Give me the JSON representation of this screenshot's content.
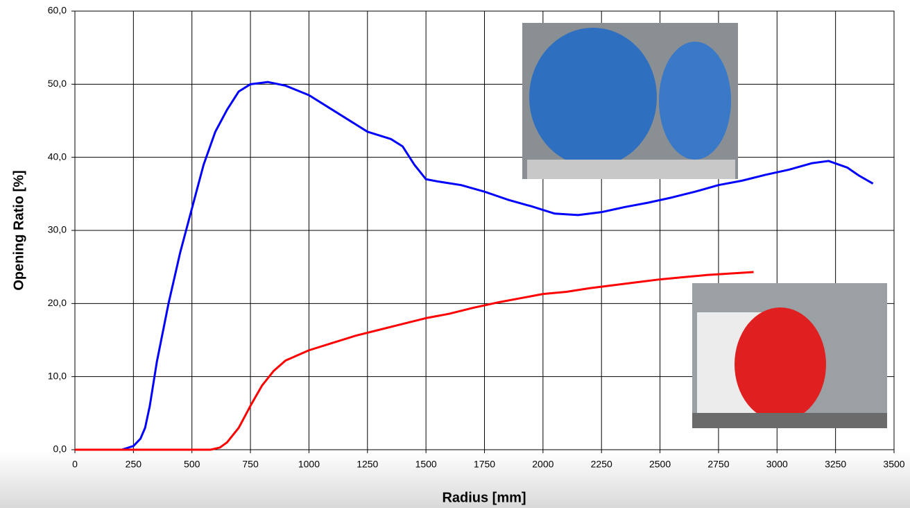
{
  "chart_data": {
    "type": "line",
    "x_label": "Radius [mm]",
    "y_label": "Opening Ratio [%]",
    "xlim": [
      0,
      3500
    ],
    "xticks": [
      0,
      250,
      500,
      750,
      1000,
      1250,
      1500,
      1750,
      2000,
      2250,
      2500,
      2750,
      3000,
      3250,
      3500
    ],
    "ylim": [
      0,
      60
    ],
    "yticks": [
      {
        "value": 0,
        "label": "0,0"
      },
      {
        "value": 10,
        "label": "10,0"
      },
      {
        "value": 20,
        "label": "20,0"
      },
      {
        "value": 30,
        "label": "30,0"
      },
      {
        "value": 40,
        "label": "40,0"
      },
      {
        "value": 50,
        "label": "50,0"
      },
      {
        "value": 60,
        "label": "60,0"
      }
    ],
    "grid": true,
    "series": [
      {
        "color": "#0000ff",
        "x": [
          0,
          200,
          250,
          280,
          300,
          320,
          350,
          400,
          450,
          500,
          550,
          600,
          650,
          700,
          750,
          825,
          900,
          1000,
          1100,
          1200,
          1250,
          1300,
          1350,
          1400,
          1450,
          1500,
          1550,
          1650,
          1750,
          1850,
          1950,
          2050,
          2150,
          2250,
          2350,
          2450,
          2550,
          2650,
          2750,
          2850,
          2950,
          3050,
          3150,
          3220,
          3300,
          3350,
          3410
        ],
        "values": [
          0,
          0,
          0.5,
          1.5,
          3,
          6,
          12,
          20,
          27,
          33,
          39,
          43.5,
          46.5,
          49,
          50,
          50.3,
          49.8,
          48.5,
          46.5,
          44.5,
          43.5,
          43,
          42.5,
          41.5,
          39,
          37,
          36.7,
          36.2,
          35.3,
          34.2,
          33.3,
          32.3,
          32.1,
          32.5,
          33.2,
          33.8,
          34.5,
          35.3,
          36.2,
          36.8,
          37.6,
          38.3,
          39.2,
          39.5,
          38.6,
          37.5,
          36.4
        ]
      },
      {
        "color": "#ff0000",
        "x": [
          0,
          500,
          580,
          620,
          650,
          700,
          750,
          800,
          850,
          900,
          1000,
          1100,
          1200,
          1300,
          1400,
          1500,
          1600,
          1700,
          1800,
          1900,
          2000,
          2100,
          2200,
          2300,
          2400,
          2500,
          2600,
          2700,
          2800,
          2900
        ],
        "values": [
          0,
          0,
          0,
          0.3,
          1,
          3,
          6,
          8.8,
          10.8,
          12.2,
          13.6,
          14.6,
          15.6,
          16.4,
          17.2,
          18,
          18.6,
          19.4,
          20.1,
          20.7,
          21.3,
          21.6,
          22.1,
          22.5,
          22.9,
          23.3,
          23.6,
          23.9,
          24.1,
          24.3
        ]
      }
    ]
  }
}
